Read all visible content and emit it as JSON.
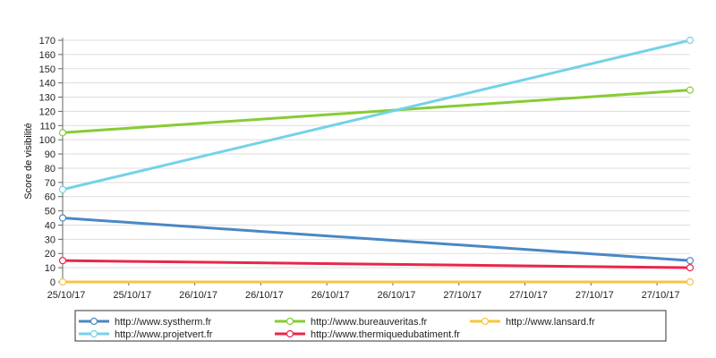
{
  "chart_data": {
    "type": "line",
    "ylabel": "Score de visibilité",
    "xlabel": "",
    "title": "",
    "ylim": [
      0,
      170
    ],
    "yticks": [
      0,
      10,
      20,
      30,
      40,
      50,
      60,
      70,
      80,
      90,
      100,
      110,
      120,
      130,
      140,
      150,
      160,
      170
    ],
    "x_tick_labels": [
      "25/10/17",
      "25/10/17",
      "26/10/17",
      "26/10/17",
      "26/10/17",
      "26/10/17",
      "27/10/17",
      "27/10/17",
      "27/10/17",
      "27/10/17"
    ],
    "grid": "horizontal",
    "legend_position": "bottom",
    "series": [
      {
        "name": "http://www.systherm.fr",
        "color": "#4a87c5",
        "values": [
          45,
          15
        ]
      },
      {
        "name": "http://www.bureauveritas.fr",
        "color": "#86cc33",
        "values": [
          105,
          135
        ]
      },
      {
        "name": "http://www.lansard.fr",
        "color": "#f5c542",
        "values": [
          0,
          0
        ]
      },
      {
        "name": "http://www.projetvert.fr",
        "color": "#74d2e7",
        "values": [
          65,
          170
        ]
      },
      {
        "name": "http://www.thermiquedubatiment.fr",
        "color": "#e8274a",
        "values": [
          15,
          10
        ]
      }
    ]
  }
}
